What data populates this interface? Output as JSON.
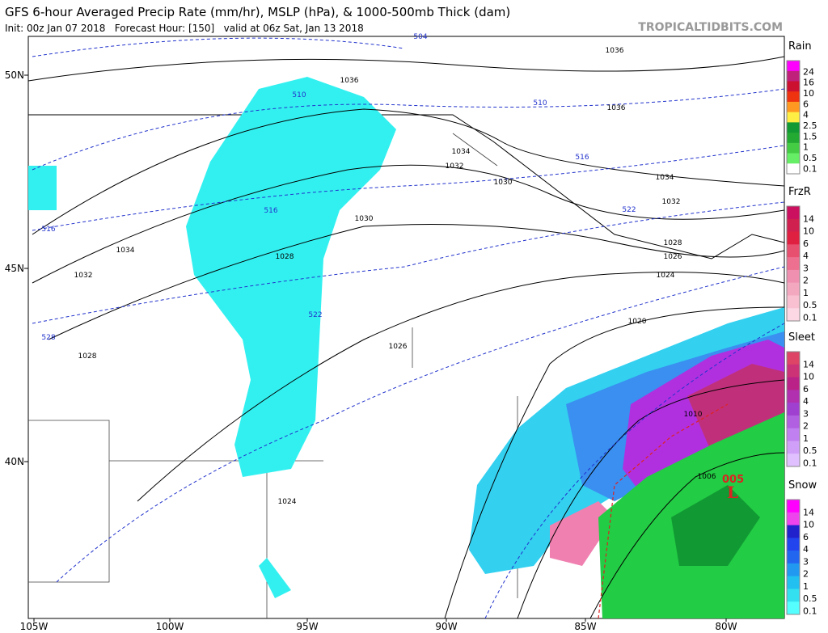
{
  "header": {
    "title": "GFS 6-hour Averaged Precip Rate (mm/hr), MSLP (hPa), & 1000-500mb Thick (dam)",
    "subtitle": "Init: 00z Jan 07 2018   Forecast Hour: [150]   valid at 06z Sat, Jan 13 2018",
    "source": "TROPICALTIDBITS.COM"
  },
  "axes": {
    "lat_labels": [
      "50N",
      "45N",
      "40N"
    ],
    "lon_labels": [
      "105W",
      "100W",
      "95W",
      "90W",
      "85W",
      "80W"
    ]
  },
  "map": {
    "isobar_labels": [
      "1036",
      "1036",
      "1036",
      "1034",
      "1034",
      "1034",
      "1032",
      "1032",
      "1032",
      "1030",
      "1030",
      "1028",
      "1028",
      "1028",
      "1026",
      "1026",
      "1024",
      "1024",
      "1020",
      "1010",
      "1006"
    ],
    "thickness_labels": [
      "504",
      "510",
      "510",
      "516",
      "516",
      "516",
      "522",
      "522",
      "528"
    ],
    "low_label": "L",
    "low_value": "005"
  },
  "legend": [
    {
      "title": "Rain",
      "ticks": [
        "24",
        "16",
        "10",
        "6",
        "4",
        "2.5",
        "1.5",
        "1",
        "0.5",
        "0.1"
      ]
    },
    {
      "title": "FrzR",
      "ticks": [
        "14",
        "10",
        "6",
        "4",
        "3",
        "2",
        "1",
        "0.5",
        "0.1"
      ]
    },
    {
      "title": "Sleet",
      "ticks": [
        "14",
        "10",
        "6",
        "4",
        "3",
        "2",
        "1",
        "0.5",
        "0.1"
      ]
    },
    {
      "title": "Snow",
      "ticks": [
        "14",
        "10",
        "6",
        "4",
        "3",
        "2",
        "1",
        "0.5",
        "0.1"
      ]
    }
  ]
}
